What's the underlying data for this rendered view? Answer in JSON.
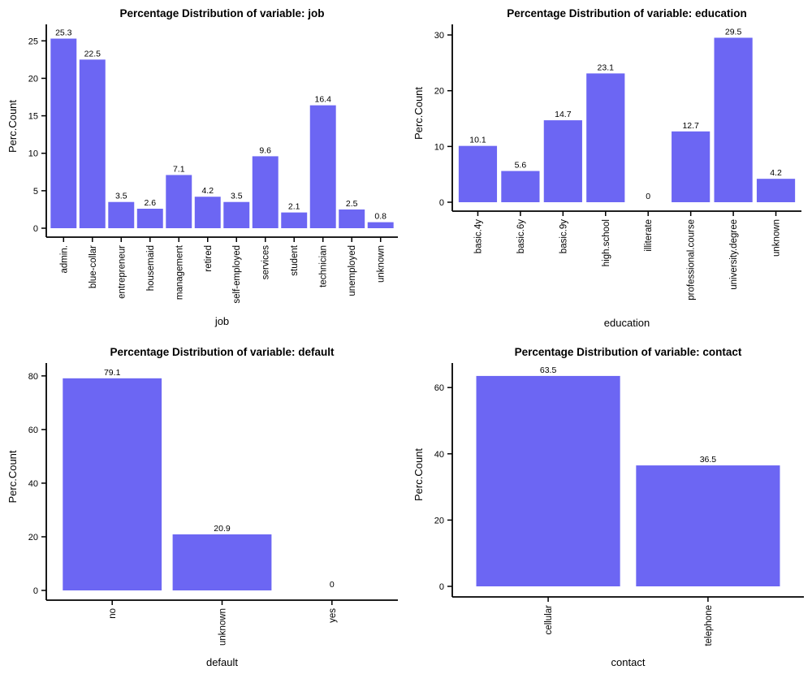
{
  "style": {
    "background": "#ffffff",
    "bar_color": "#6c66f3",
    "axis_color": "#000000",
    "text_color": "#000000"
  },
  "chart_data": [
    {
      "type": "bar",
      "title": "Percentage Distribution of variable: job",
      "xlabel": "job",
      "ylabel": "Perc.Count",
      "categories": [
        "admin.",
        "blue-collar",
        "entrepreneur",
        "housemaid",
        "management",
        "retired",
        "self-employed",
        "services",
        "student",
        "technician",
        "unemployed",
        "unknown"
      ],
      "values": [
        25.3,
        22.5,
        3.5,
        2.6,
        7.1,
        4.2,
        3.5,
        9.6,
        2.1,
        16.4,
        2.5,
        0.8
      ],
      "y_ticks": [
        0,
        5,
        10,
        15,
        20,
        25
      ],
      "ylim": [
        0,
        27.2
      ],
      "grid": false,
      "legend": false
    },
    {
      "type": "bar",
      "title": "Percentage Distribution of variable: education",
      "xlabel": "education",
      "ylabel": "Perc.Count",
      "categories": [
        "basic.4y",
        "basic.6y",
        "basic.9y",
        "high.school",
        "illiterate",
        "professional.course",
        "university.degree",
        "unknown"
      ],
      "values": [
        10.1,
        5.6,
        14.7,
        23.1,
        0,
        12.7,
        29.5,
        4.2
      ],
      "y_ticks": [
        0,
        10,
        20,
        30
      ],
      "ylim": [
        0,
        31.9
      ],
      "grid": false,
      "legend": false
    },
    {
      "type": "bar",
      "title": "Percentage Distribution of variable: default",
      "xlabel": "default",
      "ylabel": "Perc.Count",
      "categories": [
        "no",
        "unknown",
        "yes"
      ],
      "values": [
        79.1,
        20.9,
        0
      ],
      "y_ticks": [
        0,
        20,
        40,
        60,
        80
      ],
      "ylim": [
        0,
        84.8
      ],
      "grid": false,
      "legend": false
    },
    {
      "type": "bar",
      "title": "Percentage Distribution of variable: contact",
      "xlabel": "contact",
      "ylabel": "Perc.Count",
      "categories": [
        "cellular",
        "telephone"
      ],
      "values": [
        63.5,
        36.5
      ],
      "y_ticks": [
        0,
        20,
        40,
        60
      ],
      "ylim": [
        0,
        67.4
      ],
      "grid": false,
      "legend": false
    }
  ]
}
